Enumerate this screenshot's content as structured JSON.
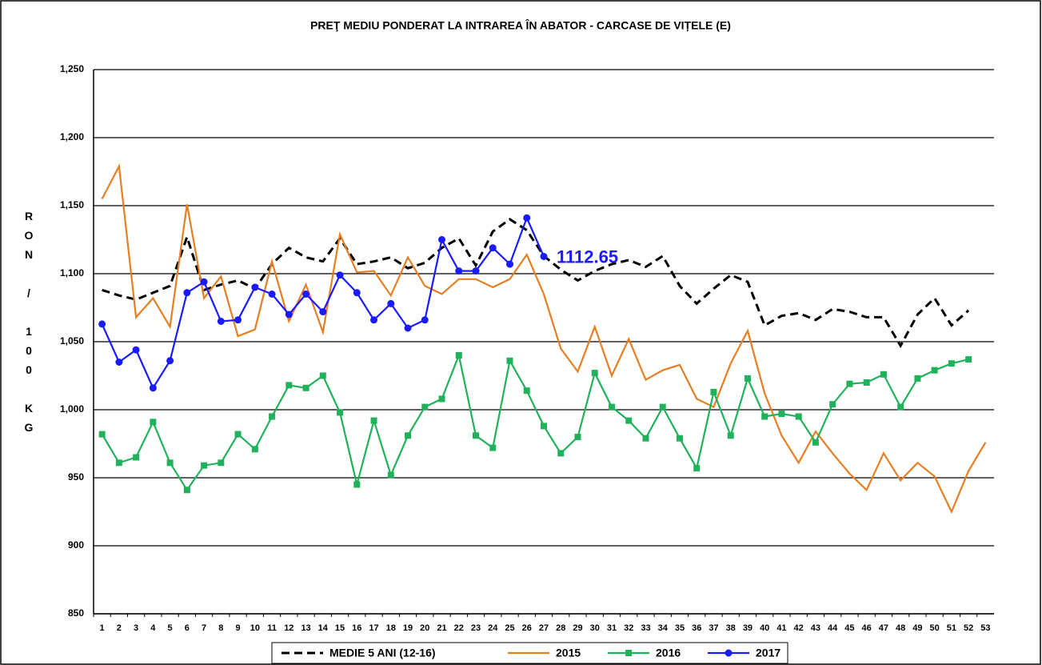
{
  "chart_data": {
    "type": "line",
    "title": "PREŢ MEDIU PONDERAT LA INTRAREA ÎN ABATOR - CARCASE DE VIȚELE (E)",
    "y_label": "RON / 100 KG",
    "categories": [
      1,
      2,
      3,
      4,
      5,
      6,
      7,
      8,
      9,
      10,
      11,
      12,
      13,
      14,
      15,
      16,
      17,
      18,
      19,
      20,
      21,
      22,
      23,
      24,
      25,
      26,
      27,
      28,
      29,
      30,
      31,
      32,
      33,
      34,
      35,
      36,
      37,
      38,
      39,
      40,
      41,
      42,
      43,
      44,
      45,
      46,
      47,
      48,
      49,
      50,
      51,
      52,
      53
    ],
    "ylim": [
      850,
      1250
    ],
    "yticks": [
      850,
      900,
      950,
      {
        "value": 1000,
        "label": "1,000"
      },
      {
        "value": 1050,
        "label": "1,050"
      },
      {
        "value": 1100,
        "label": "1,100"
      },
      {
        "value": 1150,
        "label": "1,150"
      },
      {
        "value": 1200,
        "label": "1,200"
      },
      {
        "value": 1250,
        "label": "1,250"
      }
    ],
    "grid": true,
    "legend": "bottom",
    "series": [
      {
        "name": "MEDIE 5 ANI (12-16)",
        "color": "#000000",
        "style": "dashed",
        "marker": "none",
        "values": [
          1088,
          1084,
          1081,
          1086,
          1091,
          1127,
          1088,
          1092,
          1095,
          1089,
          1107,
          1119,
          1112,
          1109,
          1126,
          1107,
          1109,
          1112,
          1104,
          1108,
          1119,
          1126,
          1106,
          1131,
          1140,
          1132,
          1113,
          1103,
          1095,
          1102,
          1107,
          1110,
          1105,
          1113,
          1091,
          1078,
          1089,
          1099,
          1094,
          1062,
          1069,
          1071,
          1066,
          1074,
          1072,
          1068,
          1068,
          1047,
          1070,
          1082,
          1062,
          1073,
          null
        ]
      },
      {
        "name": "2015",
        "color": "#e67e22",
        "style": "solid",
        "marker": "none",
        "values": [
          1155,
          1179,
          1068,
          1082,
          1061,
          1151,
          1082,
          1098,
          1054,
          1059,
          1109,
          1065,
          1092,
          1057,
          1129,
          1101,
          1102,
          1084,
          1112,
          1091,
          1085,
          1096,
          1096,
          1090,
          1096,
          1114,
          1085,
          1045,
          1028,
          1061,
          1025,
          1052,
          1022,
          1029,
          1033,
          1008,
          1002,
          1034,
          1058,
          1012,
          981,
          961,
          984,
          968,
          953,
          941,
          968,
          948,
          961,
          951,
          925,
          955,
          976
        ]
      },
      {
        "name": "2016",
        "color": "#1fb25a",
        "style": "solid",
        "marker": "square",
        "values": [
          982,
          961,
          965,
          991,
          961,
          941,
          959,
          961,
          982,
          971,
          995,
          1018,
          1016,
          1025,
          998,
          945,
          992,
          952,
          981,
          1002,
          1008,
          1040,
          981,
          972,
          1036,
          1014,
          988,
          968,
          980,
          1027,
          1002,
          992,
          979,
          1002,
          979,
          957,
          1013,
          981,
          1023,
          995,
          997,
          995,
          976,
          1004,
          1019,
          1020,
          1026,
          1002,
          1023,
          1029,
          1034,
          1037,
          null
        ]
      },
      {
        "name": "2017",
        "color": "#1a1aff",
        "style": "solid",
        "marker": "circle",
        "values": [
          1063,
          1035,
          1044,
          1016,
          1036,
          1086,
          1094,
          1065,
          1066,
          1090,
          1085,
          1070,
          1085,
          1072,
          1099,
          1086,
          1066,
          1078,
          1060,
          1066,
          1125,
          1102,
          1102,
          1119,
          1107,
          1141,
          1112.65,
          null,
          null,
          null,
          null,
          null,
          null,
          null,
          null,
          null,
          null,
          null,
          null,
          null,
          null,
          null,
          null,
          null,
          null,
          null,
          null,
          null,
          null,
          null,
          null,
          null,
          null
        ]
      }
    ],
    "annotation": {
      "text": "1112.65",
      "series": 3,
      "index": 26
    }
  }
}
